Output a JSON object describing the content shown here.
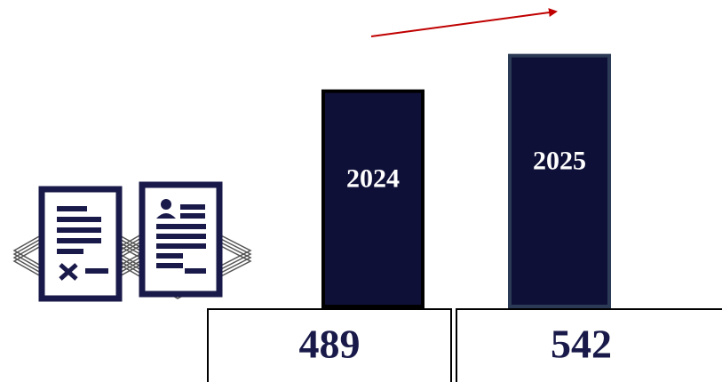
{
  "chart_data": {
    "type": "bar",
    "categories": [
      "2024",
      "2025"
    ],
    "values": [
      489,
      542
    ],
    "color": "#0f1038"
  }
}
